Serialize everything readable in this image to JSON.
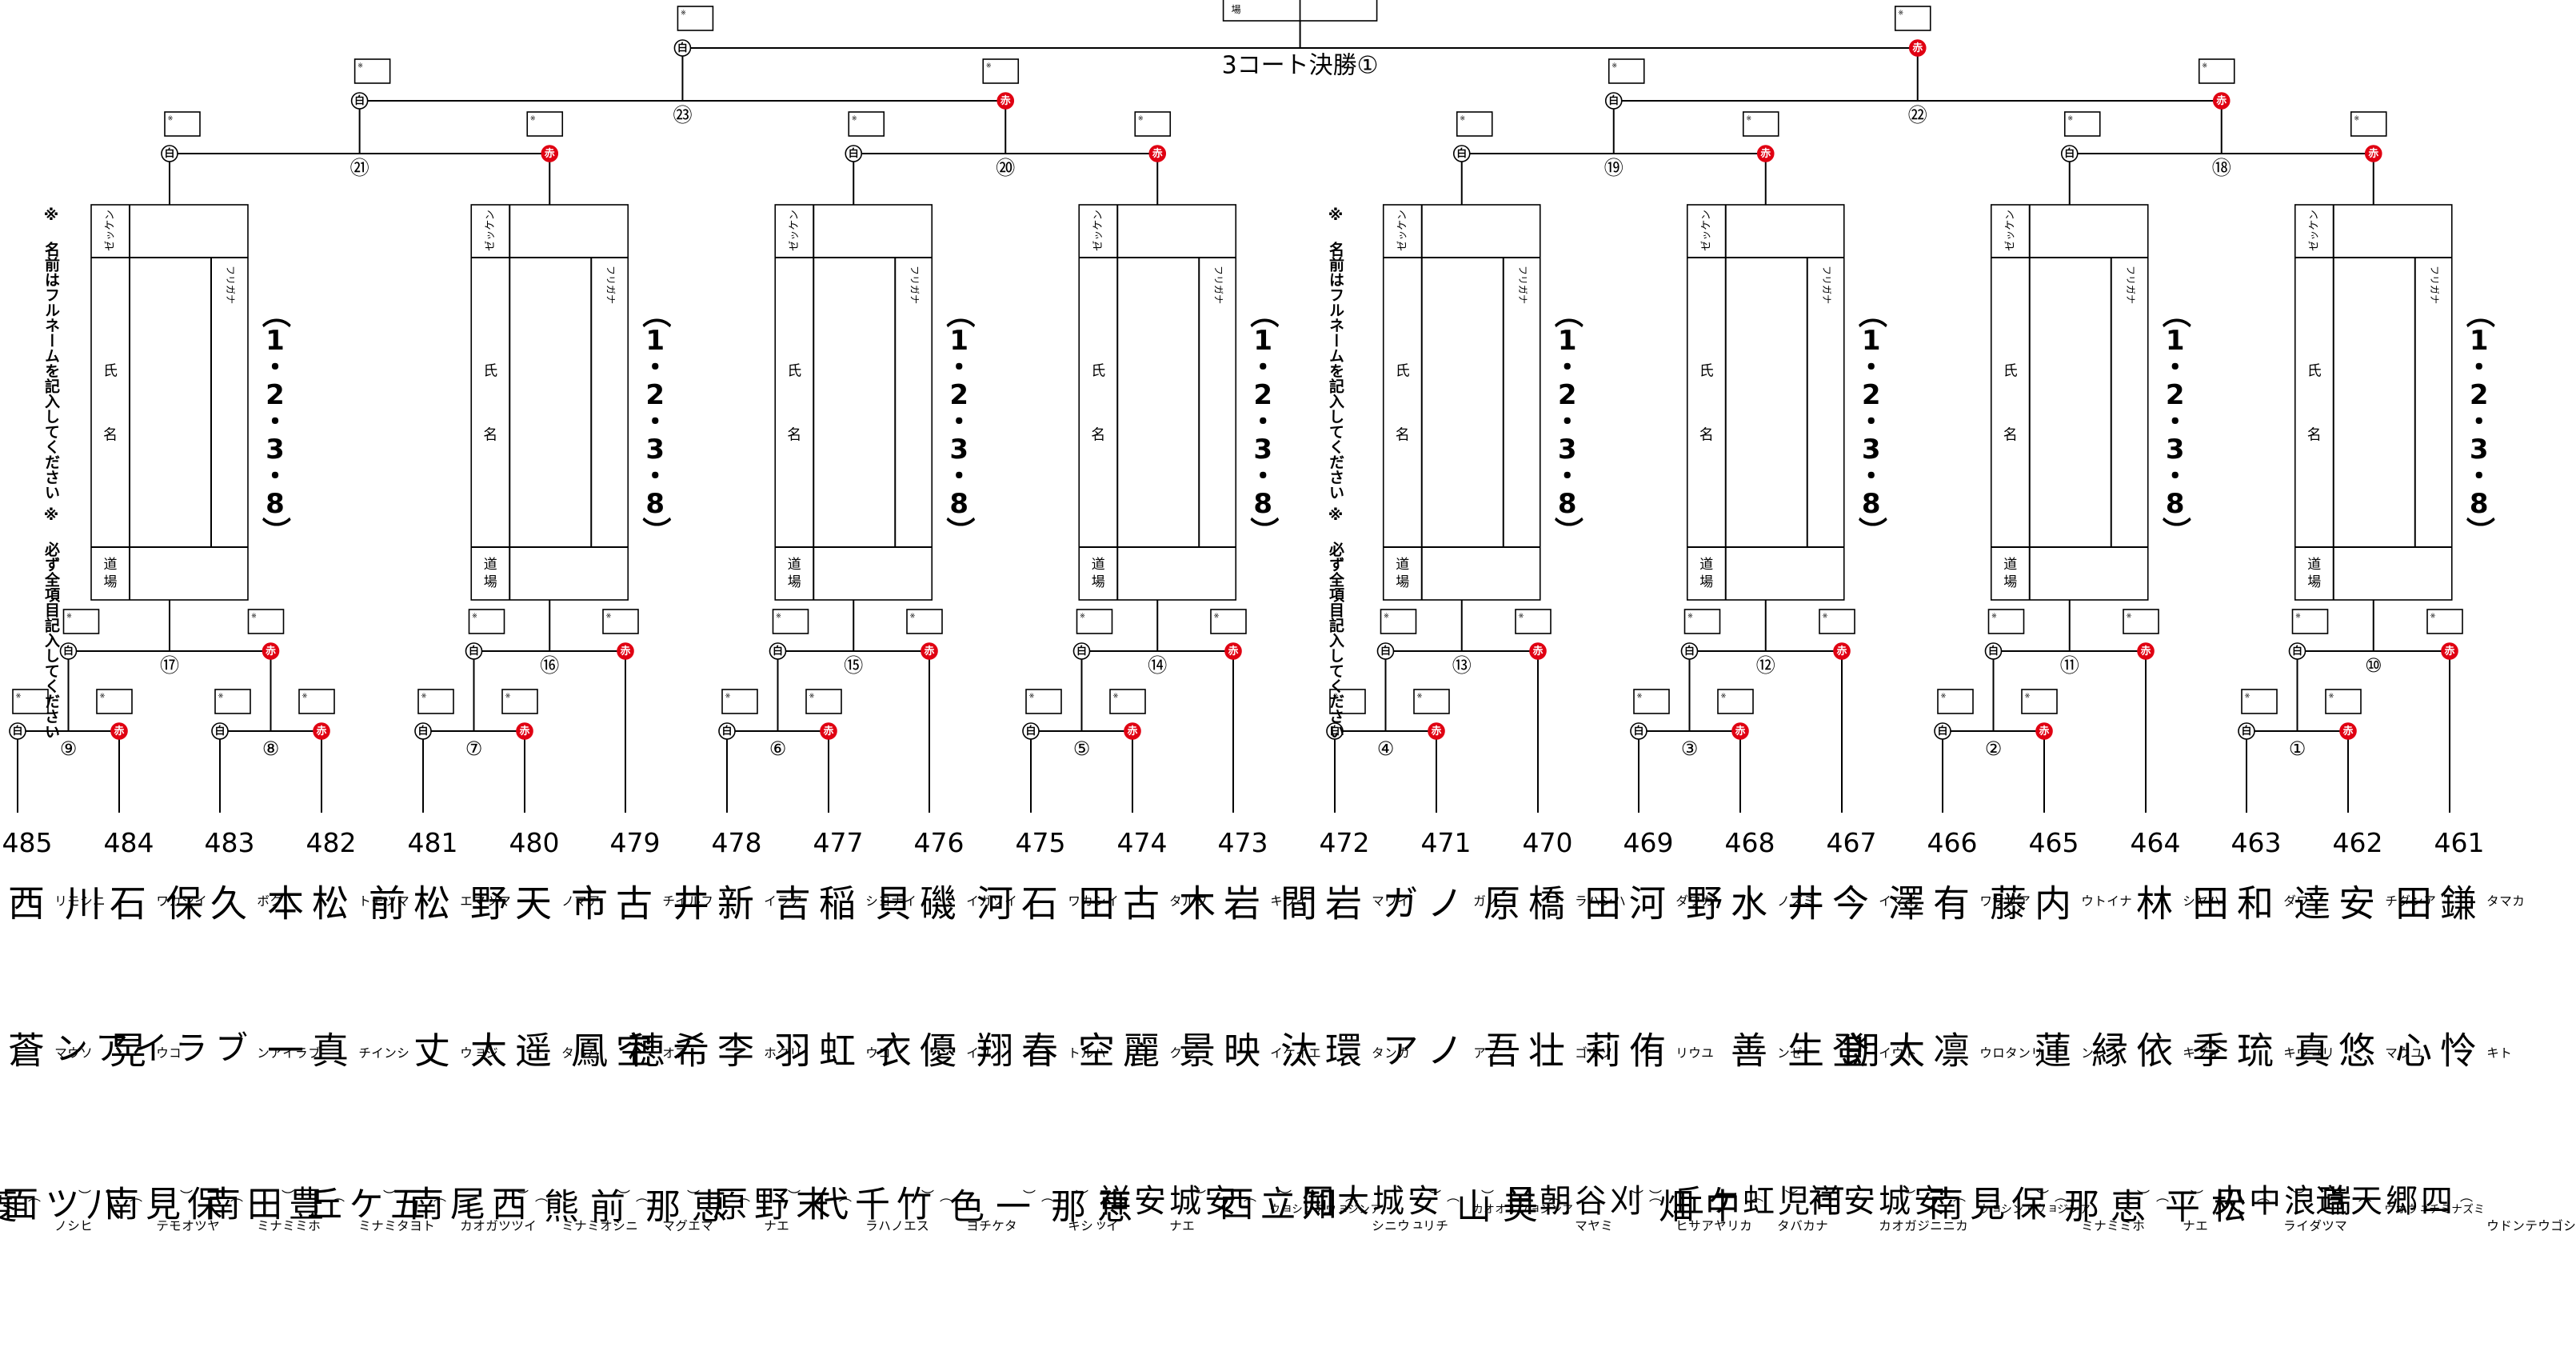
{
  "final": {
    "title": "3コート決勝①"
  },
  "labels": {
    "shiro": "白",
    "aka": "赤",
    "zekken": "ゼッケン",
    "furigana": "フリガナ",
    "uji": "氏",
    "mei": "名",
    "dojo": "道場",
    "ba": "場",
    "box_mark": "※"
  },
  "note_lines": [
    "※ 必ず全項目記入してください",
    "※ 名前はフルネームを記入してください"
  ],
  "place_label": "（1・2・3・8）",
  "matches_first": [
    "⑨",
    "⑧",
    "⑦",
    "⑥",
    "⑤",
    "④",
    "③",
    "②",
    "①"
  ],
  "matches_second": [
    "⑰",
    "⑯",
    "⑮",
    "⑭",
    "⑬",
    "⑫",
    "⑪",
    "⑩"
  ],
  "matches_third": [
    "㉑",
    "⑳",
    "⑲",
    "⑱"
  ],
  "matches_semi": [
    "㉓",
    "㉒"
  ],
  "entries": [
    {
      "num": "485",
      "surname": "西森",
      "surname_kana": "ニシモリ",
      "given": "蒼真",
      "given_kana": "ソウマ",
      "dojo": "(菱野)",
      "dojo_kana": "ヒシノ"
    },
    {
      "num": "484",
      "surname": "石川",
      "surname_kana": "イシカワ",
      "given": "晃",
      "given_kana": "コウ",
      "dojo": "(八ツ面)",
      "dojo_kana": "ヤツオモテ"
    },
    {
      "num": "483",
      "surname": "久保",
      "surname_kana": "クボ",
      "given": "ブライアン",
      "given_kana": "ブライアン",
      "dojo": "(保見南)",
      "dojo_kana": "ホミミナミ"
    },
    {
      "num": "482",
      "surname": "松本",
      "surname_kana": "マツモト",
      "given": "真一",
      "given_kana": "シンイチ",
      "dojo": "(豊田南)",
      "dojo_kana": "トヨタミナミ"
    },
    {
      "num": "481",
      "surname": "松前",
      "surname_kana": "マツマエ",
      "given": "丈",
      "given_kana": "ジョウ",
      "dojo": "(五ケ丘)",
      "dojo_kana": "イツツガオカ"
    },
    {
      "num": "480",
      "surname": "天野",
      "surname_kana": "アマノ",
      "given": "遥太",
      "given_kana": "ハルタ",
      "dojo": "(西尾南)",
      "dojo_kana": "ニシオミナミ"
    },
    {
      "num": "479",
      "surname": "古市",
      "surname_kana": "フルイチ",
      "given": "空鳳",
      "given_kana": "アオ",
      "dojo": "(前熊)",
      "dojo_kana": "マエグマ"
    },
    {
      "num": "478",
      "surname": "新井",
      "surname_kana": "アライ",
      "given": "李希穂",
      "given_kana": "リクホ",
      "dojo": "(恵那)",
      "dojo_kana": "エナ"
    },
    {
      "num": "477",
      "surname": "稲吉",
      "surname_kana": "イナヨシ",
      "given": "虹羽",
      "given_kana": "コウ",
      "dojo": "(末野原)",
      "dojo_kana": "スエノハラ"
    },
    {
      "num": "476",
      "surname": "磯貝",
      "surname_kana": "イソガイ",
      "given": "優衣",
      "given_kana": "ユイ",
      "dojo": "(竹千代)",
      "dojo_kana": "タケチヨ"
    },
    {
      "num": "475",
      "surname": "石河",
      "surname_kana": "イシカワ",
      "given": "春翔",
      "given_kana": "ハルト",
      "dojo": "(一色)",
      "dojo_kana": "イッシキ"
    },
    {
      "num": "474",
      "surname": "古田",
      "surname_kana": "フルタ",
      "given": "麗空",
      "given_kana": "レク",
      "dojo": "(恵那)",
      "dojo_kana": "エナ"
    },
    {
      "num": "473",
      "surname": "岩木",
      "surname_kana": "イワキ",
      "given": "映景",
      "given_kana": "エイケイ",
      "dojo": "(安城安祥)",
      "dojo_kana": "アンジョウアンショウ"
    },
    {
      "num": "472",
      "surname": "岩間",
      "surname_kana": "イワマ",
      "given": "環汰",
      "given_kana": "カンタ",
      "dojo": "(知立西)",
      "dojo_kana": "チリュウニシ"
    },
    {
      "num": "471",
      "surname": "ノガ",
      "surname_kana": "ノガ",
      "given": "ノア",
      "given_kana": "ノア",
      "dojo": "(安城大岡)",
      "dojo_kana": "アンジョウオオオカ"
    },
    {
      "num": "470",
      "surname": "橋原",
      "surname_kana": "ハシハラ",
      "given": "壮吾",
      "given_kana": "ソウゴ",
      "dojo": "(美山)",
      "dojo_kana": "ミヤマ"
    },
    {
      "num": "469",
      "surname": "河田",
      "surname_kana": "カワダ",
      "given": "侑莉",
      "given_kana": "ユウリ",
      "dojo": "(刈谷朝日)",
      "dojo_kana": "カリヤアサヒ"
    },
    {
      "num": "468",
      "surname": "水野",
      "surname_kana": "ミズノ",
      "given": "善",
      "given_kana": "ゼン",
      "dojo": "(中畑)",
      "dojo_kana": "ナカバタ"
    },
    {
      "num": "467",
      "surname": "今井",
      "surname_kana": "イマイ",
      "given": "登生",
      "given_kana": "トウイ",
      "dojo": "(可児虹ケ丘)",
      "dojo_kana": "カニニジガオカ"
    },
    {
      "num": "466",
      "surname": "有澤",
      "surname_kana": "アリサワ",
      "given": "凛太朗",
      "given_kana": "リンタロウ",
      "dojo": "(安城安祥)",
      "dojo_kana": "アンジョウアンショウ"
    },
    {
      "num": "465",
      "surname": "内藤",
      "surname_kana": "ナイトウ",
      "given": "蓮",
      "given_kana": "レン",
      "dojo": "(保見南)",
      "dojo_kana": "ホミミナミ"
    },
    {
      "num": "464",
      "surname": "林",
      "surname_kana": "ハヤシ",
      "given": "依縁",
      "given_kana": "イブキ",
      "dojo": "(恵那)",
      "dojo_kana": "エナ"
    },
    {
      "num": "463",
      "surname": "和田",
      "surname_kana": "ワダ",
      "given": "琉季",
      "given_kana": "リュウキ",
      "dojo": "(松平)",
      "dojo_kana": "マツダイラ"
    },
    {
      "num": "462",
      "surname": "安達",
      "surname_kana": "アンダチ",
      "given": "悠真",
      "given_kana": "ユウマ",
      "dojo": "(瑞浪中央)",
      "dojo_kana": "ミズナミチュウオウ"
    },
    {
      "num": "461",
      "surname": "鎌田",
      "surname_kana": "カマタ",
      "given": "怜心",
      "given_kana": "トキ",
      "dojo": "(四郷天道)",
      "dojo_kana": "シゴウテンドウ"
    }
  ]
}
